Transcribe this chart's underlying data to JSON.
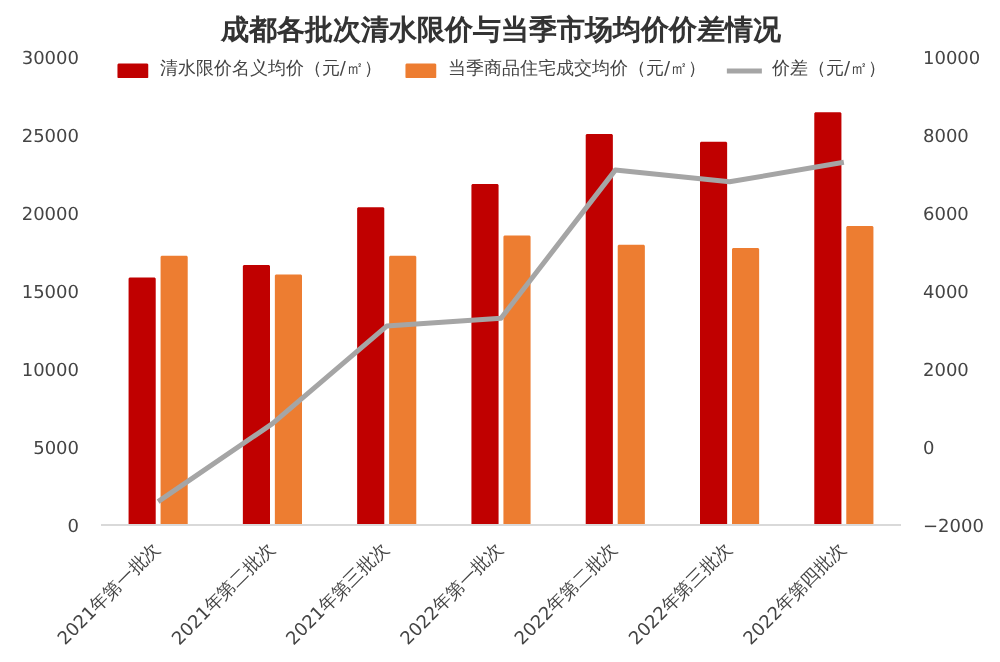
{
  "chart_data": {
    "type": "bar",
    "title": "成都各批次清水限价与当季市场均价价差情况",
    "categories": [
      "2021年第一批次",
      "2021年第二批次",
      "2021年第三批次",
      "2022年第一批次",
      "2022年第二批次",
      "2022年第三批次",
      "2022年第四批次"
    ],
    "series": [
      {
        "name": "清水限价名义均价（元/㎡）",
        "color": "#c00000",
        "values": [
          15800,
          16600,
          20300,
          21800,
          25000,
          24500,
          26400
        ]
      },
      {
        "name": "当季商品住宅成交均价（元/㎡）",
        "color": "#ed7d31",
        "values": [
          17200,
          16000,
          17200,
          18500,
          17900,
          17700,
          19100
        ]
      },
      {
        "name": "价差（元/㎡）",
        "color": "#a5a5a5",
        "type": "line",
        "axis": "y2",
        "values": [
          -1400,
          600,
          3100,
          3300,
          7100,
          6800,
          7300
        ]
      }
    ],
    "ylim": [
      0,
      30000
    ],
    "yticks": [
      0,
      5000,
      10000,
      15000,
      20000,
      25000,
      30000
    ],
    "y2lim": [
      -2000,
      10000
    ],
    "y2ticks": [
      -2000,
      0,
      2000,
      4000,
      6000,
      8000,
      10000
    ],
    "legend": "top",
    "grid": false
  }
}
